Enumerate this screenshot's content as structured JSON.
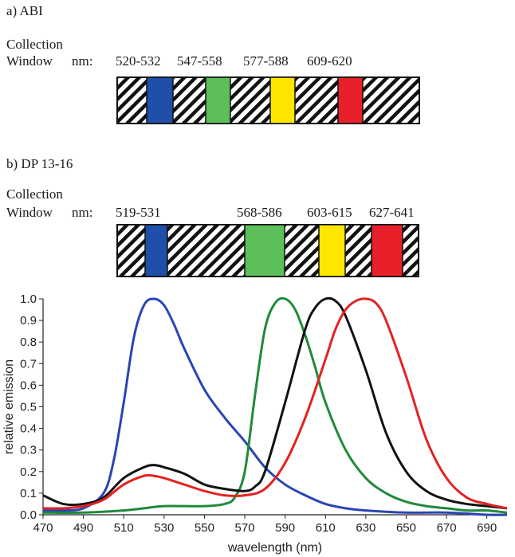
{
  "panels": [
    {
      "title": "a) ABI",
      "collection_label": "Collection",
      "window_label": "Window",
      "unit_label": "nm:",
      "windows": [
        {
          "range": "520-532",
          "color": "#1f4fa8"
        },
        {
          "range": "547-558",
          "color": "#5cbf5a"
        },
        {
          "range": "577-588",
          "color": "#ffe600"
        },
        {
          "range": "609-620",
          "color": "#e8202a"
        }
      ]
    },
    {
      "title": "b) DP 13-16",
      "collection_label": "Collection",
      "window_label": "Window",
      "unit_label": "nm:",
      "windows": [
        {
          "range": "519-531",
          "color": "#1f4fa8"
        },
        {
          "range": "568-586",
          "color": "#5cbf5a"
        },
        {
          "range": "603-615",
          "color": "#ffe600"
        },
        {
          "range": "627-641",
          "color": "#e8202a"
        }
      ]
    }
  ],
  "chart_data": {
    "type": "line",
    "xlabel": "wavelength (nm)",
    "ylabel": "relative emission",
    "xlim": [
      470,
      700
    ],
    "ylim": [
      0.0,
      1.0
    ],
    "xticks": [
      470,
      490,
      510,
      530,
      550,
      570,
      590,
      610,
      630,
      650,
      670,
      690
    ],
    "yticks": [
      0.0,
      0.1,
      0.2,
      0.3,
      0.4,
      0.5,
      0.6,
      0.7,
      0.8,
      0.9,
      1.0
    ],
    "ytick_labels": [
      "0.0",
      "0.1",
      "0.2",
      "0.3",
      "0.4",
      "0.5",
      "0.6",
      "0.7",
      "0.8",
      "0.9",
      "1.0"
    ],
    "grid": false,
    "series": [
      {
        "color": "#2a45b4",
        "x": [
          470,
          480,
          490,
          500,
          505,
          510,
          515,
          520,
          525,
          530,
          535,
          540,
          550,
          560,
          570,
          580,
          590,
          600,
          610,
          620,
          630,
          650,
          670,
          690,
          700
        ],
        "y": [
          0.02,
          0.02,
          0.03,
          0.1,
          0.25,
          0.52,
          0.82,
          0.97,
          1.0,
          0.97,
          0.88,
          0.77,
          0.58,
          0.45,
          0.34,
          0.22,
          0.14,
          0.09,
          0.05,
          0.03,
          0.02,
          0.01,
          0.01,
          0.0,
          0.0
        ]
      },
      {
        "color": "#1f8a3a",
        "x": [
          470,
          490,
          510,
          520,
          530,
          550,
          560,
          565,
          570,
          575,
          580,
          585,
          590,
          595,
          600,
          605,
          610,
          620,
          630,
          640,
          650,
          660,
          670,
          680,
          690,
          700
        ],
        "y": [
          0.01,
          0.01,
          0.02,
          0.03,
          0.04,
          0.04,
          0.05,
          0.08,
          0.2,
          0.55,
          0.86,
          0.98,
          1.0,
          0.95,
          0.83,
          0.68,
          0.52,
          0.3,
          0.17,
          0.1,
          0.06,
          0.04,
          0.03,
          0.02,
          0.02,
          0.01
        ]
      },
      {
        "color": "#111111",
        "x": [
          470,
          480,
          490,
          500,
          510,
          520,
          525,
          530,
          540,
          550,
          560,
          570,
          575,
          580,
          590,
          600,
          605,
          610,
          615,
          620,
          630,
          640,
          650,
          660,
          670,
          680,
          690,
          700
        ],
        "y": [
          0.09,
          0.05,
          0.05,
          0.08,
          0.17,
          0.22,
          0.23,
          0.22,
          0.19,
          0.14,
          0.12,
          0.11,
          0.13,
          0.2,
          0.52,
          0.86,
          0.96,
          1.0,
          0.99,
          0.92,
          0.67,
          0.38,
          0.2,
          0.11,
          0.07,
          0.05,
          0.04,
          0.03
        ]
      },
      {
        "color": "#e32222",
        "x": [
          470,
          480,
          490,
          500,
          510,
          520,
          525,
          530,
          540,
          550,
          560,
          570,
          580,
          590,
          600,
          610,
          615,
          620,
          625,
          630,
          635,
          640,
          650,
          660,
          670,
          680,
          690,
          700
        ],
        "y": [
          0.03,
          0.03,
          0.04,
          0.07,
          0.14,
          0.18,
          0.18,
          0.17,
          0.14,
          0.11,
          0.09,
          0.09,
          0.12,
          0.24,
          0.45,
          0.72,
          0.86,
          0.95,
          0.99,
          1.0,
          0.98,
          0.9,
          0.64,
          0.35,
          0.17,
          0.08,
          0.05,
          0.03
        ]
      }
    ]
  }
}
